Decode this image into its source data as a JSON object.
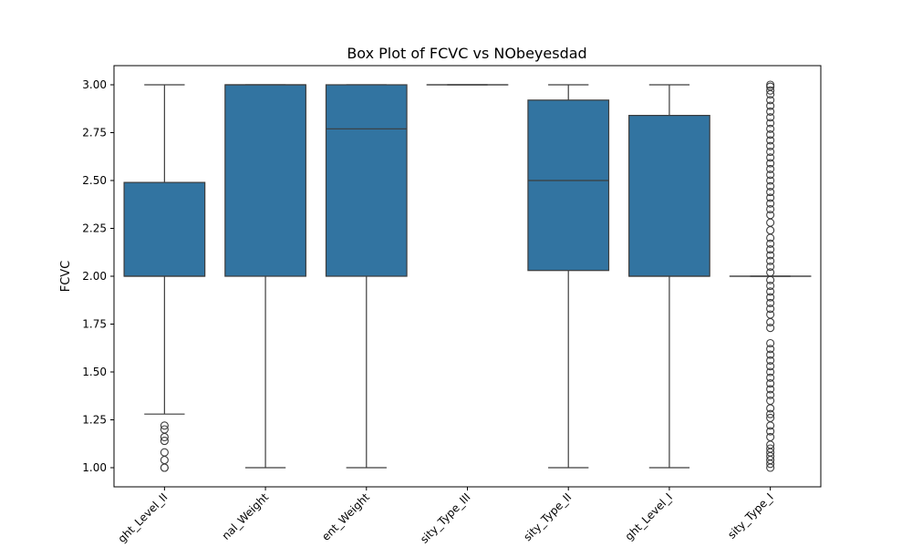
{
  "chart_data": {
    "type": "box",
    "title": "Box Plot of FCVC vs NObeyesdad",
    "xlabel": "",
    "ylabel": "FCVC",
    "ylim": [
      0.9,
      3.1
    ],
    "yticks": [
      "1.00",
      "1.25",
      "1.50",
      "1.75",
      "2.00",
      "2.25",
      "2.50",
      "2.75",
      "3.00"
    ],
    "box_color": "#3274a1",
    "line_color": "#3d3d3d",
    "grid": false,
    "categories": [
      "ght_Level_II",
      "nal_Weight",
      "ent_Weight",
      "sity_Type_III",
      "sity_Type_II",
      "ght_Level_I",
      "sity_Type_I"
    ],
    "boxes": [
      {
        "whisker_low": 1.28,
        "q1": 2.0,
        "median": 2.0,
        "q3": 2.49,
        "whisker_high": 3.0,
        "outliers": [
          1.0,
          1.0,
          1.04,
          1.08,
          1.14,
          1.16,
          1.2,
          1.22
        ]
      },
      {
        "whisker_low": 1.0,
        "q1": 2.0,
        "median": 3.0,
        "q3": 3.0,
        "whisker_high": 3.0,
        "outliers": []
      },
      {
        "whisker_low": 1.0,
        "q1": 2.0,
        "median": 2.77,
        "q3": 3.0,
        "whisker_high": 3.0,
        "outliers": []
      },
      {
        "whisker_low": 3.0,
        "q1": 3.0,
        "median": 3.0,
        "q3": 3.0,
        "whisker_high": 3.0,
        "outliers": []
      },
      {
        "whisker_low": 1.0,
        "q1": 2.03,
        "median": 2.5,
        "q3": 2.92,
        "whisker_high": 3.0,
        "outliers": []
      },
      {
        "whisker_low": 1.0,
        "q1": 2.0,
        "median": 2.0,
        "q3": 2.84,
        "whisker_high": 3.0,
        "outliers": []
      },
      {
        "whisker_low": 2.0,
        "q1": 2.0,
        "median": 2.0,
        "q3": 2.0,
        "whisker_high": 2.0,
        "outliers": [
          1.0,
          1.02,
          1.04,
          1.06,
          1.08,
          1.1,
          1.12,
          1.16,
          1.19,
          1.22,
          1.26,
          1.28,
          1.31,
          1.35,
          1.38,
          1.41,
          1.44,
          1.47,
          1.5,
          1.53,
          1.56,
          1.59,
          1.62,
          1.65,
          1.73,
          1.76,
          1.8,
          1.83,
          1.86,
          1.89,
          1.92,
          1.95,
          1.98,
          2.02,
          2.05,
          2.08,
          2.11,
          2.14,
          2.17,
          2.2,
          2.24,
          2.28,
          2.32,
          2.35,
          2.38,
          2.41,
          2.44,
          2.47,
          2.5,
          2.53,
          2.56,
          2.59,
          2.62,
          2.65,
          2.68,
          2.71,
          2.74,
          2.77,
          2.8,
          2.83,
          2.86,
          2.89,
          2.92,
          2.95,
          2.97,
          2.99,
          3.0
        ]
      }
    ]
  }
}
